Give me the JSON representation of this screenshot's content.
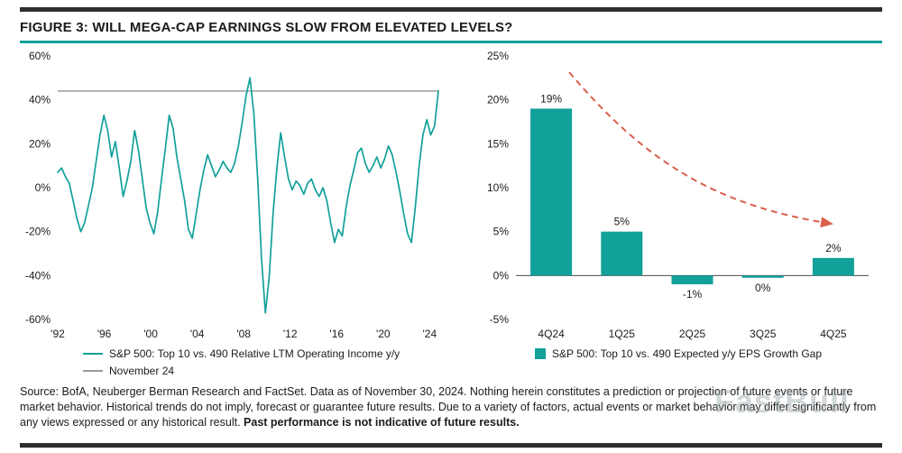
{
  "page": {
    "title": "FIGURE 3: WILL MEGA-CAP EARNINGS SLOW FROM ELEVATED LEVELS?"
  },
  "colors": {
    "teal": "#12A09A",
    "dark_rule": "#2d2d2d",
    "red_arrow": "#D9604C",
    "reference_line": "#9b9b9b"
  },
  "watermark": "FastBull",
  "source": {
    "prefix": "Source: BofA, Neuberger Berman Research and FactSet. Data as of November 30, 2024. Nothing herein constitutes a prediction or projection of future events or future market behavior. Historical trends do not imply, forecast or guarantee future results. Due to a variety of factors, actual events or market behavior may differ significantly from any views expressed or any historical result. ",
    "bold": "Past performance is not indicative of future results."
  },
  "chart_data": [
    {
      "type": "line",
      "ylim": [
        -60,
        60
      ],
      "y_ticks": [
        60,
        40,
        20,
        0,
        -20,
        -40,
        -60
      ],
      "y_tick_suffix": "%",
      "x_ticks": [
        {
          "year": 1992,
          "label": "'92"
        },
        {
          "year": 1996,
          "label": "'96"
        },
        {
          "year": 2000,
          "label": "'00"
        },
        {
          "year": 2004,
          "label": "'04"
        },
        {
          "year": 2008,
          "label": "'08"
        },
        {
          "year": 2012,
          "label": "'12"
        },
        {
          "year": 2016,
          "label": "'16"
        },
        {
          "year": 2020,
          "label": "'20"
        },
        {
          "year": 2024,
          "label": "'24"
        }
      ],
      "reference_line": {
        "label": "November 24",
        "value": 44,
        "color": "#9b9b9b"
      },
      "series": [
        {
          "name": "S&P 500: Top 10 vs. 490 Relative LTM Operating Income y/y",
          "color": "#12A09A",
          "x_start": 1992,
          "x_end": 2024.75,
          "values": [
            7,
            9,
            5,
            2,
            -6,
            -14,
            -20,
            -16,
            -8,
            0,
            12,
            24,
            33,
            26,
            14,
            21,
            9,
            -4,
            3,
            12,
            26,
            17,
            4,
            -9,
            -16,
            -21,
            -11,
            4,
            18,
            33,
            27,
            14,
            4,
            -6,
            -19,
            -23,
            -12,
            -1,
            8,
            15,
            10,
            5,
            8,
            12,
            9,
            7,
            11,
            19,
            30,
            42,
            50,
            34,
            4,
            -32,
            -57,
            -41,
            -12,
            9,
            25,
            14,
            4,
            -1,
            3,
            1,
            -3,
            2,
            4,
            -1,
            -4,
            0,
            -6,
            -16,
            -25,
            -19,
            -22,
            -9,
            1,
            8,
            16,
            18,
            11,
            7,
            10,
            14,
            9,
            13,
            19,
            15,
            7,
            -2,
            -12,
            -21,
            -25,
            -9,
            10,
            24,
            31,
            24,
            28,
            44
          ]
        }
      ],
      "legend_position": "bottom"
    },
    {
      "type": "bar",
      "series_name": "S&P 500: Top 10 vs. 490 Expected y/y EPS Growth Gap",
      "color": "#12A09A",
      "categories": [
        "4Q24",
        "1Q25",
        "2Q25",
        "3Q25",
        "4Q25"
      ],
      "values": [
        19,
        5,
        -1,
        0,
        2
      ],
      "labels": [
        "19%",
        "5%",
        "-1%",
        "0%",
        "2%"
      ],
      "ylim": [
        -5,
        25
      ],
      "y_ticks": [
        25,
        20,
        15,
        10,
        5,
        0,
        -5
      ],
      "y_tick_suffix": "%",
      "annotation": {
        "type": "dashed-curved-arrow",
        "color": "#D9604C",
        "meaning": "expected declining growth-gap trend"
      },
      "legend_position": "bottom"
    }
  ]
}
